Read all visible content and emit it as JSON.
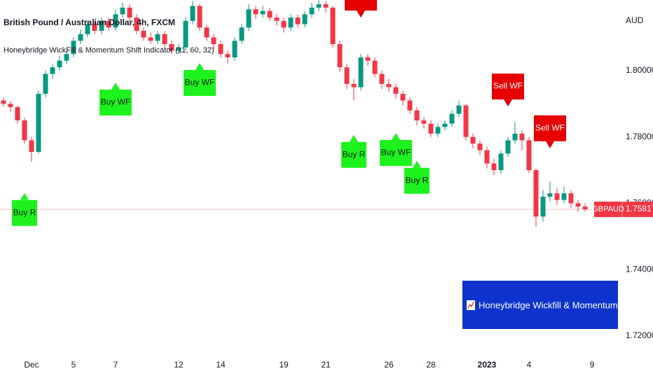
{
  "chart_data": {
    "type": "candlestick",
    "title": "British Pound / Australian Dollar, 4h, FXCM",
    "subtitle": "Honeybridge WickFill & Momentum Shift Indicator (11, 60, 32)",
    "y_label": "AUD",
    "banner": "Honeybridge Wickfill & Momentum Shift Indicator",
    "ylim": [
      1.7147,
      1.8213
    ],
    "yticks": [
      {
        "value": 1.72,
        "label": "1.72000"
      },
      {
        "value": 1.74,
        "label": "1.74000"
      },
      {
        "value": 1.76,
        "label": "1.76000"
      },
      {
        "value": 1.78,
        "label": "1.78000"
      },
      {
        "value": 1.8,
        "label": "1.80000"
      }
    ],
    "grid": false,
    "up_color": "#089981",
    "down_color": "#f23645",
    "last_price_color": "#f23645",
    "categories": [
      null,
      null,
      null,
      null,
      "Dec",
      null,
      null,
      null,
      null,
      null,
      "5",
      null,
      null,
      null,
      null,
      null,
      "7",
      null,
      null,
      null,
      null,
      null,
      null,
      null,
      null,
      "12",
      null,
      null,
      null,
      null,
      null,
      "14",
      null,
      null,
      null,
      null,
      null,
      null,
      null,
      null,
      "19",
      null,
      null,
      null,
      null,
      null,
      "21",
      null,
      null,
      null,
      null,
      null,
      null,
      null,
      null,
      "26",
      null,
      null,
      null,
      null,
      null,
      "28",
      null,
      null,
      null,
      null,
      null,
      null,
      null,
      "2023",
      null,
      null,
      null,
      null,
      null,
      "4",
      null,
      null,
      null,
      null,
      null,
      null,
      null,
      null,
      "9"
    ],
    "series": [
      {
        "name": "GBPAUD",
        "open": [
          1.791,
          1.79,
          1.789,
          1.785,
          1.779,
          1.7755,
          1.793,
          1.799,
          1.801,
          1.803,
          1.805,
          1.809,
          1.811,
          1.814,
          1.812,
          1.815,
          1.813,
          1.817,
          1.819,
          1.816,
          1.812,
          1.81,
          1.809,
          1.811,
          1.808,
          1.806,
          1.807,
          1.815,
          1.8195,
          1.813,
          1.81,
          1.808,
          1.805,
          1.804,
          1.809,
          1.813,
          1.8185,
          1.817,
          1.818,
          1.816,
          1.815,
          1.813,
          1.816,
          1.814,
          1.817,
          1.819,
          1.82,
          1.819,
          1.808,
          1.801,
          1.796,
          1.795,
          1.804,
          1.803,
          1.799,
          1.796,
          1.795,
          1.793,
          1.791,
          1.788,
          1.785,
          1.784,
          1.781,
          1.783,
          1.784,
          1.787,
          1.7895,
          1.78,
          1.778,
          1.776,
          1.772,
          1.77,
          1.775,
          1.779,
          1.781,
          1.779,
          1.77,
          1.756,
          1.762,
          1.763,
          1.761,
          1.763,
          1.76,
          1.759,
          null
        ],
        "high": [
          1.7918,
          1.7908,
          1.7895,
          1.7858,
          1.78,
          1.794,
          1.8,
          1.802,
          1.8045,
          1.806,
          1.81,
          1.8125,
          1.815,
          1.815,
          1.816,
          1.816,
          1.8185,
          1.8205,
          1.82,
          1.817,
          1.813,
          1.8115,
          1.812,
          1.812,
          1.809,
          1.808,
          1.816,
          1.821,
          1.82,
          1.814,
          1.811,
          1.809,
          1.806,
          1.81,
          1.814,
          1.82,
          1.8195,
          1.8195,
          1.819,
          1.817,
          1.816,
          1.817,
          1.817,
          1.818,
          1.8205,
          1.8215,
          1.821,
          1.8195,
          1.809,
          1.802,
          1.7975,
          1.805,
          1.805,
          1.804,
          1.8,
          1.7975,
          1.796,
          1.794,
          1.792,
          1.789,
          1.786,
          1.785,
          1.784,
          1.785,
          1.788,
          1.791,
          1.79,
          1.781,
          1.779,
          1.777,
          1.7735,
          1.776,
          1.78,
          1.7845,
          1.782,
          1.78,
          1.7705,
          1.764,
          1.7665,
          1.7645,
          1.765,
          1.764,
          1.761,
          1.76,
          null
        ],
        "low": [
          1.7892,
          1.7875,
          1.784,
          1.778,
          1.7725,
          1.775,
          1.792,
          1.7975,
          1.8,
          1.802,
          1.804,
          1.808,
          1.81,
          1.811,
          1.811,
          1.812,
          1.812,
          1.816,
          1.815,
          1.811,
          1.809,
          1.808,
          1.808,
          1.807,
          1.805,
          1.805,
          1.806,
          1.814,
          1.812,
          1.809,
          1.8065,
          1.804,
          1.802,
          1.803,
          1.808,
          1.812,
          1.8155,
          1.816,
          1.815,
          1.8135,
          1.8115,
          1.812,
          1.813,
          1.813,
          1.816,
          1.818,
          1.8175,
          1.807,
          1.7995,
          1.7945,
          1.791,
          1.794,
          1.8015,
          1.798,
          1.7945,
          1.7935,
          1.7915,
          1.7895,
          1.787,
          1.7835,
          1.7825,
          1.78,
          1.78,
          1.782,
          1.783,
          1.786,
          1.779,
          1.7765,
          1.7745,
          1.7705,
          1.7685,
          1.769,
          1.774,
          1.778,
          1.776,
          1.769,
          1.753,
          1.7545,
          1.7605,
          1.7595,
          1.76,
          1.7585,
          1.7575,
          1.7575,
          null
        ],
        "close": [
          1.79,
          1.789,
          1.785,
          1.779,
          1.7755,
          1.793,
          1.799,
          1.801,
          1.803,
          1.805,
          1.809,
          1.811,
          1.814,
          1.812,
          1.815,
          1.813,
          1.817,
          1.819,
          1.816,
          1.812,
          1.81,
          1.809,
          1.811,
          1.808,
          1.806,
          1.807,
          1.815,
          1.8195,
          1.813,
          1.81,
          1.808,
          1.805,
          1.804,
          1.809,
          1.813,
          1.8185,
          1.817,
          1.818,
          1.816,
          1.815,
          1.813,
          1.816,
          1.814,
          1.817,
          1.819,
          1.82,
          1.819,
          1.808,
          1.801,
          1.796,
          1.795,
          1.804,
          1.803,
          1.799,
          1.796,
          1.795,
          1.793,
          1.791,
          1.788,
          1.785,
          1.784,
          1.781,
          1.783,
          1.784,
          1.787,
          1.7895,
          1.78,
          1.778,
          1.776,
          1.772,
          1.77,
          1.775,
          1.779,
          1.781,
          1.779,
          1.77,
          1.756,
          1.762,
          1.763,
          1.761,
          1.763,
          1.76,
          1.759,
          1.75817,
          null
        ]
      }
    ],
    "signals": [
      {
        "text": "Buy R",
        "side": "buy",
        "index": 3,
        "price": 1.7631,
        "color": "#1ef21e"
      },
      {
        "text": "Buy WF",
        "side": "buy",
        "index": 16,
        "price": 1.7964,
        "color": "#1ef21e"
      },
      {
        "text": "Buy WF",
        "side": "buy",
        "index": 28,
        "price": 1.8023,
        "color": "#1ef21e"
      },
      {
        "text": "Sell WF",
        "side": "sell",
        "index": 51,
        "price": 1.816,
        "color": "#e60000"
      },
      {
        "text": "Buy R",
        "side": "buy",
        "index": 50,
        "price": 1.7806,
        "color": "#1ef21e"
      },
      {
        "text": "Buy WF",
        "side": "buy",
        "index": 56,
        "price": 1.7812,
        "color": "#1ef21e"
      },
      {
        "text": "Buy R",
        "side": "buy",
        "index": 59,
        "price": 1.7728,
        "color": "#1ef21e"
      },
      {
        "text": "Sell WF",
        "side": "sell",
        "index": 72,
        "price": 1.7892,
        "color": "#e60000"
      },
      {
        "text": "Sell WF",
        "side": "sell",
        "index": 78,
        "price": 1.7766,
        "color": "#e60000"
      }
    ]
  }
}
